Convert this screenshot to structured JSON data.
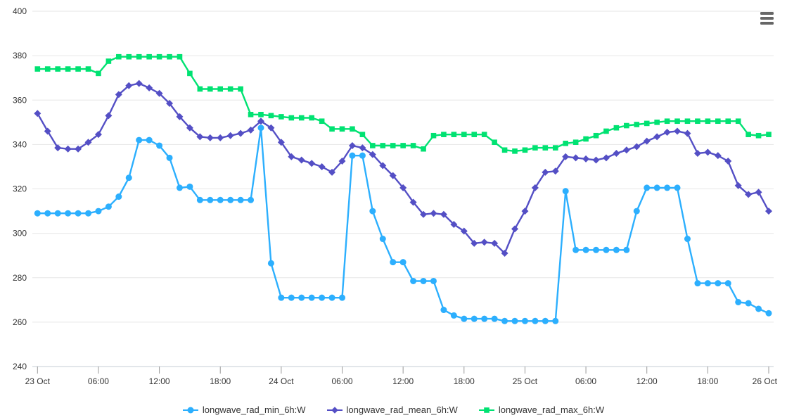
{
  "toolbar": {
    "context_menu": {
      "icon": "hamburger-icon",
      "color": "#666666"
    }
  },
  "chart_data": {
    "type": "line",
    "title": "",
    "xlabel": "",
    "ylabel": "",
    "grid": "horizontal",
    "legend_position": "bottom-center",
    "x_axis": {
      "point_interval_hours": 1,
      "hours_span": 72,
      "tick_hours": [
        0,
        6,
        12,
        18,
        24,
        30,
        36,
        42,
        48,
        54,
        60,
        66,
        72
      ],
      "tick_labels": [
        "23 Oct",
        "06:00",
        "12:00",
        "18:00",
        "24 Oct",
        "06:00",
        "12:00",
        "18:00",
        "25 Oct",
        "06:00",
        "12:00",
        "18:00",
        "26 Oct"
      ]
    },
    "y_axis": {
      "min": 240,
      "max": 400,
      "ticks": [
        240,
        260,
        280,
        300,
        320,
        340,
        360,
        380,
        400
      ]
    },
    "series": [
      {
        "name": "longwave_rad_min_6h:W",
        "color": "#2caffe",
        "marker": "circle",
        "values": [
          309,
          309,
          309,
          309,
          309,
          309,
          310,
          312,
          316.5,
          325,
          342,
          342,
          339.5,
          334,
          320.5,
          321,
          315,
          315,
          315,
          315,
          315,
          315,
          347.5,
          286.5,
          271,
          271,
          271,
          271,
          271,
          271,
          271,
          335,
          335,
          310,
          297.5,
          287,
          287,
          278.5,
          278.5,
          278.5,
          265.5,
          263,
          261.5,
          261.5,
          261.5,
          261.5,
          260.5,
          260.5,
          260.5,
          260.5,
          260.5,
          260.5,
          319,
          292.5,
          292.5,
          292.5,
          292.5,
          292.5,
          292.5,
          310,
          320.5,
          320.5,
          320.5,
          320.5,
          297.5,
          277.5,
          277.5,
          277.5,
          277.5,
          269,
          268.5,
          266,
          264
        ]
      },
      {
        "name": "longwave_rad_mean_6h:W",
        "color": "#544fc5",
        "marker": "diamond",
        "values": [
          354,
          346,
          338.5,
          338,
          338,
          341,
          344.5,
          353,
          362.5,
          366.5,
          367.5,
          365.5,
          363,
          358.5,
          352.5,
          347.5,
          343.5,
          343,
          343,
          344,
          345,
          346.5,
          350.5,
          347.5,
          341,
          334.5,
          333,
          331.5,
          330,
          327.5,
          332.5,
          339.5,
          338.5,
          335.5,
          330.5,
          326,
          320.5,
          314,
          308.5,
          309,
          308.5,
          304,
          301,
          295.5,
          296,
          295.5,
          291,
          302,
          310,
          320.5,
          327.5,
          328,
          334.5,
          334,
          333.5,
          333,
          334,
          336,
          337.5,
          339,
          341.5,
          343.5,
          345.5,
          346,
          345,
          336,
          336.5,
          335,
          332.5,
          321.5,
          317.5,
          318.5,
          310
        ]
      },
      {
        "name": "longwave_rad_max_6h:W",
        "color": "#00e272",
        "marker": "square",
        "values": [
          374,
          374,
          374,
          374,
          374,
          374,
          372,
          377.5,
          379.5,
          379.5,
          379.5,
          379.5,
          379.5,
          379.5,
          379.5,
          372,
          365,
          365,
          365,
          365,
          365,
          353.5,
          353.5,
          353,
          352.5,
          352,
          352,
          352,
          350.5,
          347,
          347,
          347,
          344.5,
          339.5,
          339.5,
          339.5,
          339.5,
          339.5,
          338,
          344,
          344.5,
          344.5,
          344.5,
          344.5,
          344.5,
          341,
          337.5,
          337,
          337.5,
          338.5,
          338.5,
          338.5,
          340.5,
          341,
          342.5,
          344,
          346,
          347.5,
          348.5,
          349,
          349.5,
          350,
          350.5,
          350.5,
          350.5,
          350.5,
          350.5,
          350.5,
          350.5,
          350.5,
          344.5,
          344,
          344.5
        ]
      }
    ]
  }
}
